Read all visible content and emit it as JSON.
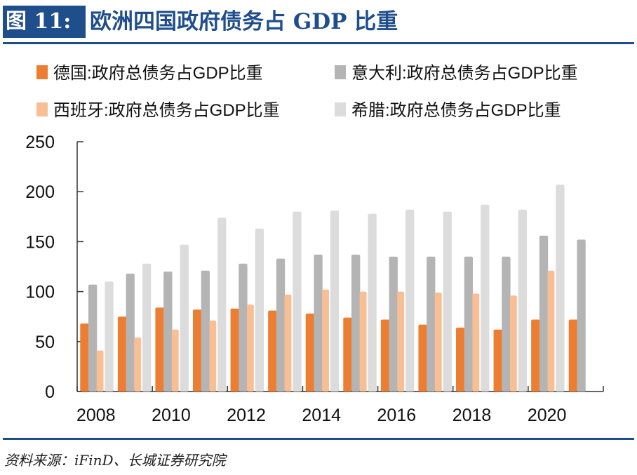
{
  "header": {
    "figure_label": "图 11:",
    "title": "欧洲四国政府债务占 GDP 比重"
  },
  "source": "资料来源：iFinD、长城证券研究院",
  "chart_data": {
    "type": "bar",
    "title": "欧洲四国政府债务占 GDP 比重",
    "categories": [
      "2008",
      "2009",
      "2010",
      "2011",
      "2012",
      "2013",
      "2014",
      "2015",
      "2016",
      "2017",
      "2018",
      "2019",
      "2020",
      "2021"
    ],
    "x_tick_labels": [
      "2008",
      "2010",
      "2012",
      "2014",
      "2016",
      "2018",
      "2020"
    ],
    "ylim": [
      0,
      250
    ],
    "y_ticks": [
      0,
      50,
      100,
      150,
      200,
      250
    ],
    "legend_position": "top",
    "series": [
      {
        "name": "德国:政府总债务占GDP比重",
        "color": "#ed7d31",
        "values": [
          68,
          75,
          84,
          82,
          83,
          81,
          78,
          74,
          72,
          67,
          64,
          62,
          72,
          72
        ]
      },
      {
        "name": "意大利:政府总债务占GDP比重",
        "color": "#b4b4b4",
        "values": [
          107,
          118,
          120,
          121,
          128,
          133,
          137,
          137,
          135,
          135,
          135,
          135,
          156,
          152
        ]
      },
      {
        "name": "西班牙:政府总债务占GDP比重",
        "color": "#f8bf95",
        "values": [
          41,
          54,
          62,
          71,
          87,
          97,
          102,
          100,
          100,
          99,
          98,
          96,
          121,
          null
        ]
      },
      {
        "name": "希腊:政府总债务占GDP比重",
        "color": "#dcdcdc",
        "values": [
          110,
          128,
          147,
          174,
          163,
          180,
          181,
          178,
          182,
          180,
          187,
          182,
          207,
          null
        ]
      }
    ]
  }
}
